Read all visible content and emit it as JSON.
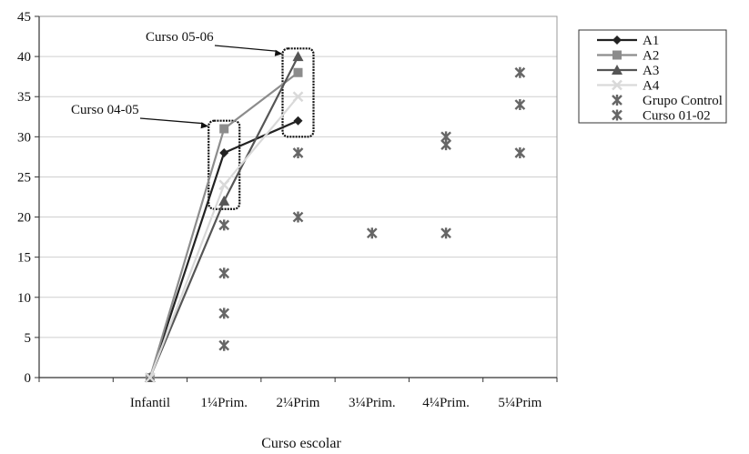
{
  "chart_data": {
    "type": "line",
    "title": "",
    "xlabel": "Curso escolar",
    "ylabel": "",
    "categories": [
      "Infantil",
      "1¼Prim.",
      "2¼Prim",
      "3¼Prim.",
      "4¼Prim.",
      "5¼Prim"
    ],
    "ylim": [
      0,
      45
    ],
    "yticks": [
      0,
      5,
      10,
      15,
      20,
      25,
      30,
      35,
      40,
      45
    ],
    "grid": true,
    "legend_position": "right",
    "series": [
      {
        "name": "A1",
        "kind": "line",
        "marker": "diamond",
        "color": "#222222",
        "values": [
          0,
          28,
          32,
          null,
          null,
          null
        ]
      },
      {
        "name": "A2",
        "kind": "line",
        "marker": "square",
        "color": "#8c8c8c",
        "values": [
          0,
          31,
          38,
          null,
          null,
          null
        ]
      },
      {
        "name": "A3",
        "kind": "line",
        "marker": "triangle",
        "color": "#555555",
        "values": [
          0,
          22,
          40,
          null,
          null,
          null
        ]
      },
      {
        "name": "A4",
        "kind": "line",
        "marker": "x",
        "color": "#d9d9d9",
        "values": [
          0,
          24,
          35,
          null,
          null,
          null
        ]
      },
      {
        "name": "Grupo Control",
        "kind": "scatter",
        "marker": "star",
        "color": "#666666",
        "points": [
          [
            1,
            19
          ],
          [
            1,
            13
          ],
          [
            1,
            8
          ],
          [
            1,
            4
          ],
          [
            2,
            28
          ],
          [
            2,
            20
          ],
          [
            3,
            18
          ],
          [
            4,
            30
          ],
          [
            4,
            18
          ],
          [
            5,
            38
          ],
          [
            5,
            28
          ]
        ]
      },
      {
        "name": "Curso 01-02",
        "kind": "scatter",
        "marker": "star",
        "color": "#666666",
        "points": [
          [
            4,
            29
          ],
          [
            5,
            34
          ]
        ]
      }
    ],
    "annotations": [
      {
        "text": "Curso 04-05",
        "target_category": 1,
        "y_range": [
          21,
          32
        ]
      },
      {
        "text": "Curso 05-06",
        "target_category": 2,
        "y_range": [
          30,
          41
        ]
      }
    ]
  }
}
